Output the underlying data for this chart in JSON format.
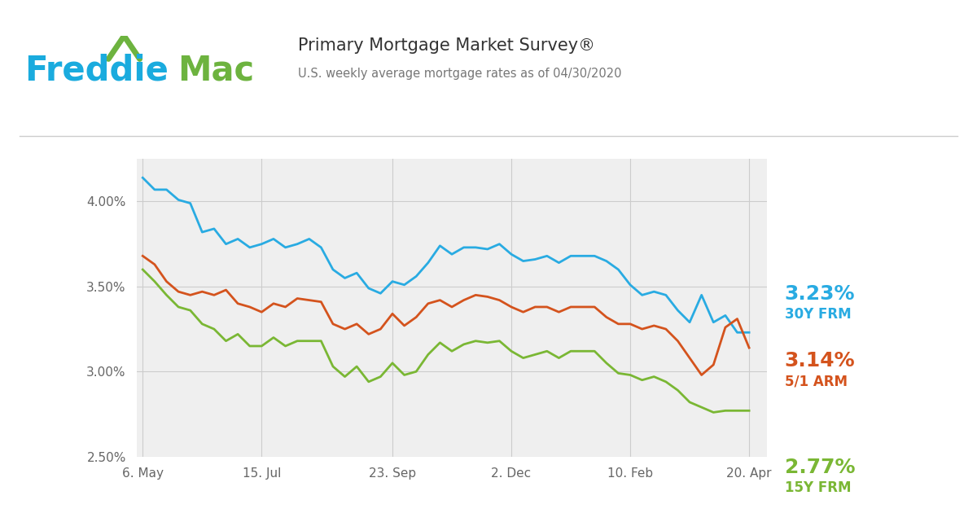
{
  "title_main": "Primary Mortgage Market Survey®",
  "title_sub": "U.S. weekly average mortgage rates as of 04/30/2020",
  "freddie_blue": "#1AABDE",
  "freddie_green": "#6DB33F",
  "line_blue": "#29ABE2",
  "line_orange": "#D4531D",
  "line_green": "#7AB734",
  "plot_bg": "#EFEFEF",
  "label_30y": "3.23%",
  "label_15y": "2.77%",
  "label_arm": "3.14%",
  "label_30y_sub": "30Y FRM",
  "label_arm_sub": "5/1 ARM",
  "label_15y_sub": "15Y FRM",
  "ylim_min": 2.5,
  "ylim_max": 4.25,
  "yticks": [
    2.5,
    3.0,
    3.5,
    4.0
  ],
  "xtick_labels": [
    "6. May",
    "15. Jul",
    "23. Sep",
    "2. Dec",
    "10. Feb",
    "20. Apr"
  ],
  "xtick_pos": [
    0,
    10,
    21,
    31,
    41,
    51
  ],
  "x_data": [
    0,
    1,
    2,
    3,
    4,
    5,
    6,
    7,
    8,
    9,
    10,
    11,
    12,
    13,
    14,
    15,
    16,
    17,
    18,
    19,
    20,
    21,
    22,
    23,
    24,
    25,
    26,
    27,
    28,
    29,
    30,
    31,
    32,
    33,
    34,
    35,
    36,
    37,
    38,
    39,
    40,
    41,
    42,
    43,
    44,
    45,
    46,
    47,
    48,
    49,
    50,
    51
  ],
  "y_30y": [
    4.14,
    4.07,
    4.07,
    4.01,
    3.99,
    3.82,
    3.84,
    3.75,
    3.78,
    3.73,
    3.75,
    3.78,
    3.73,
    3.75,
    3.78,
    3.73,
    3.6,
    3.55,
    3.58,
    3.49,
    3.46,
    3.53,
    3.51,
    3.56,
    3.64,
    3.74,
    3.69,
    3.73,
    3.73,
    3.72,
    3.75,
    3.69,
    3.65,
    3.66,
    3.68,
    3.64,
    3.68,
    3.68,
    3.68,
    3.65,
    3.6,
    3.51,
    3.45,
    3.47,
    3.45,
    3.36,
    3.29,
    3.45,
    3.29,
    3.33,
    3.23,
    3.23
  ],
  "y_arm": [
    3.68,
    3.63,
    3.53,
    3.47,
    3.45,
    3.47,
    3.45,
    3.48,
    3.4,
    3.38,
    3.35,
    3.4,
    3.38,
    3.43,
    3.42,
    3.41,
    3.28,
    3.25,
    3.28,
    3.22,
    3.25,
    3.34,
    3.27,
    3.32,
    3.4,
    3.42,
    3.38,
    3.42,
    3.45,
    3.44,
    3.42,
    3.38,
    3.35,
    3.38,
    3.38,
    3.35,
    3.38,
    3.38,
    3.38,
    3.32,
    3.28,
    3.28,
    3.25,
    3.27,
    3.25,
    3.18,
    3.08,
    2.98,
    3.04,
    3.26,
    3.31,
    3.14
  ],
  "y_15y": [
    3.6,
    3.53,
    3.45,
    3.38,
    3.36,
    3.28,
    3.25,
    3.18,
    3.22,
    3.15,
    3.15,
    3.2,
    3.15,
    3.18,
    3.18,
    3.18,
    3.03,
    2.97,
    3.03,
    2.94,
    2.97,
    3.05,
    2.98,
    3.0,
    3.1,
    3.17,
    3.12,
    3.16,
    3.18,
    3.17,
    3.18,
    3.12,
    3.08,
    3.1,
    3.12,
    3.08,
    3.12,
    3.12,
    3.12,
    3.05,
    2.99,
    2.98,
    2.95,
    2.97,
    2.94,
    2.89,
    2.82,
    2.79,
    2.76,
    2.77,
    2.77,
    2.77
  ]
}
